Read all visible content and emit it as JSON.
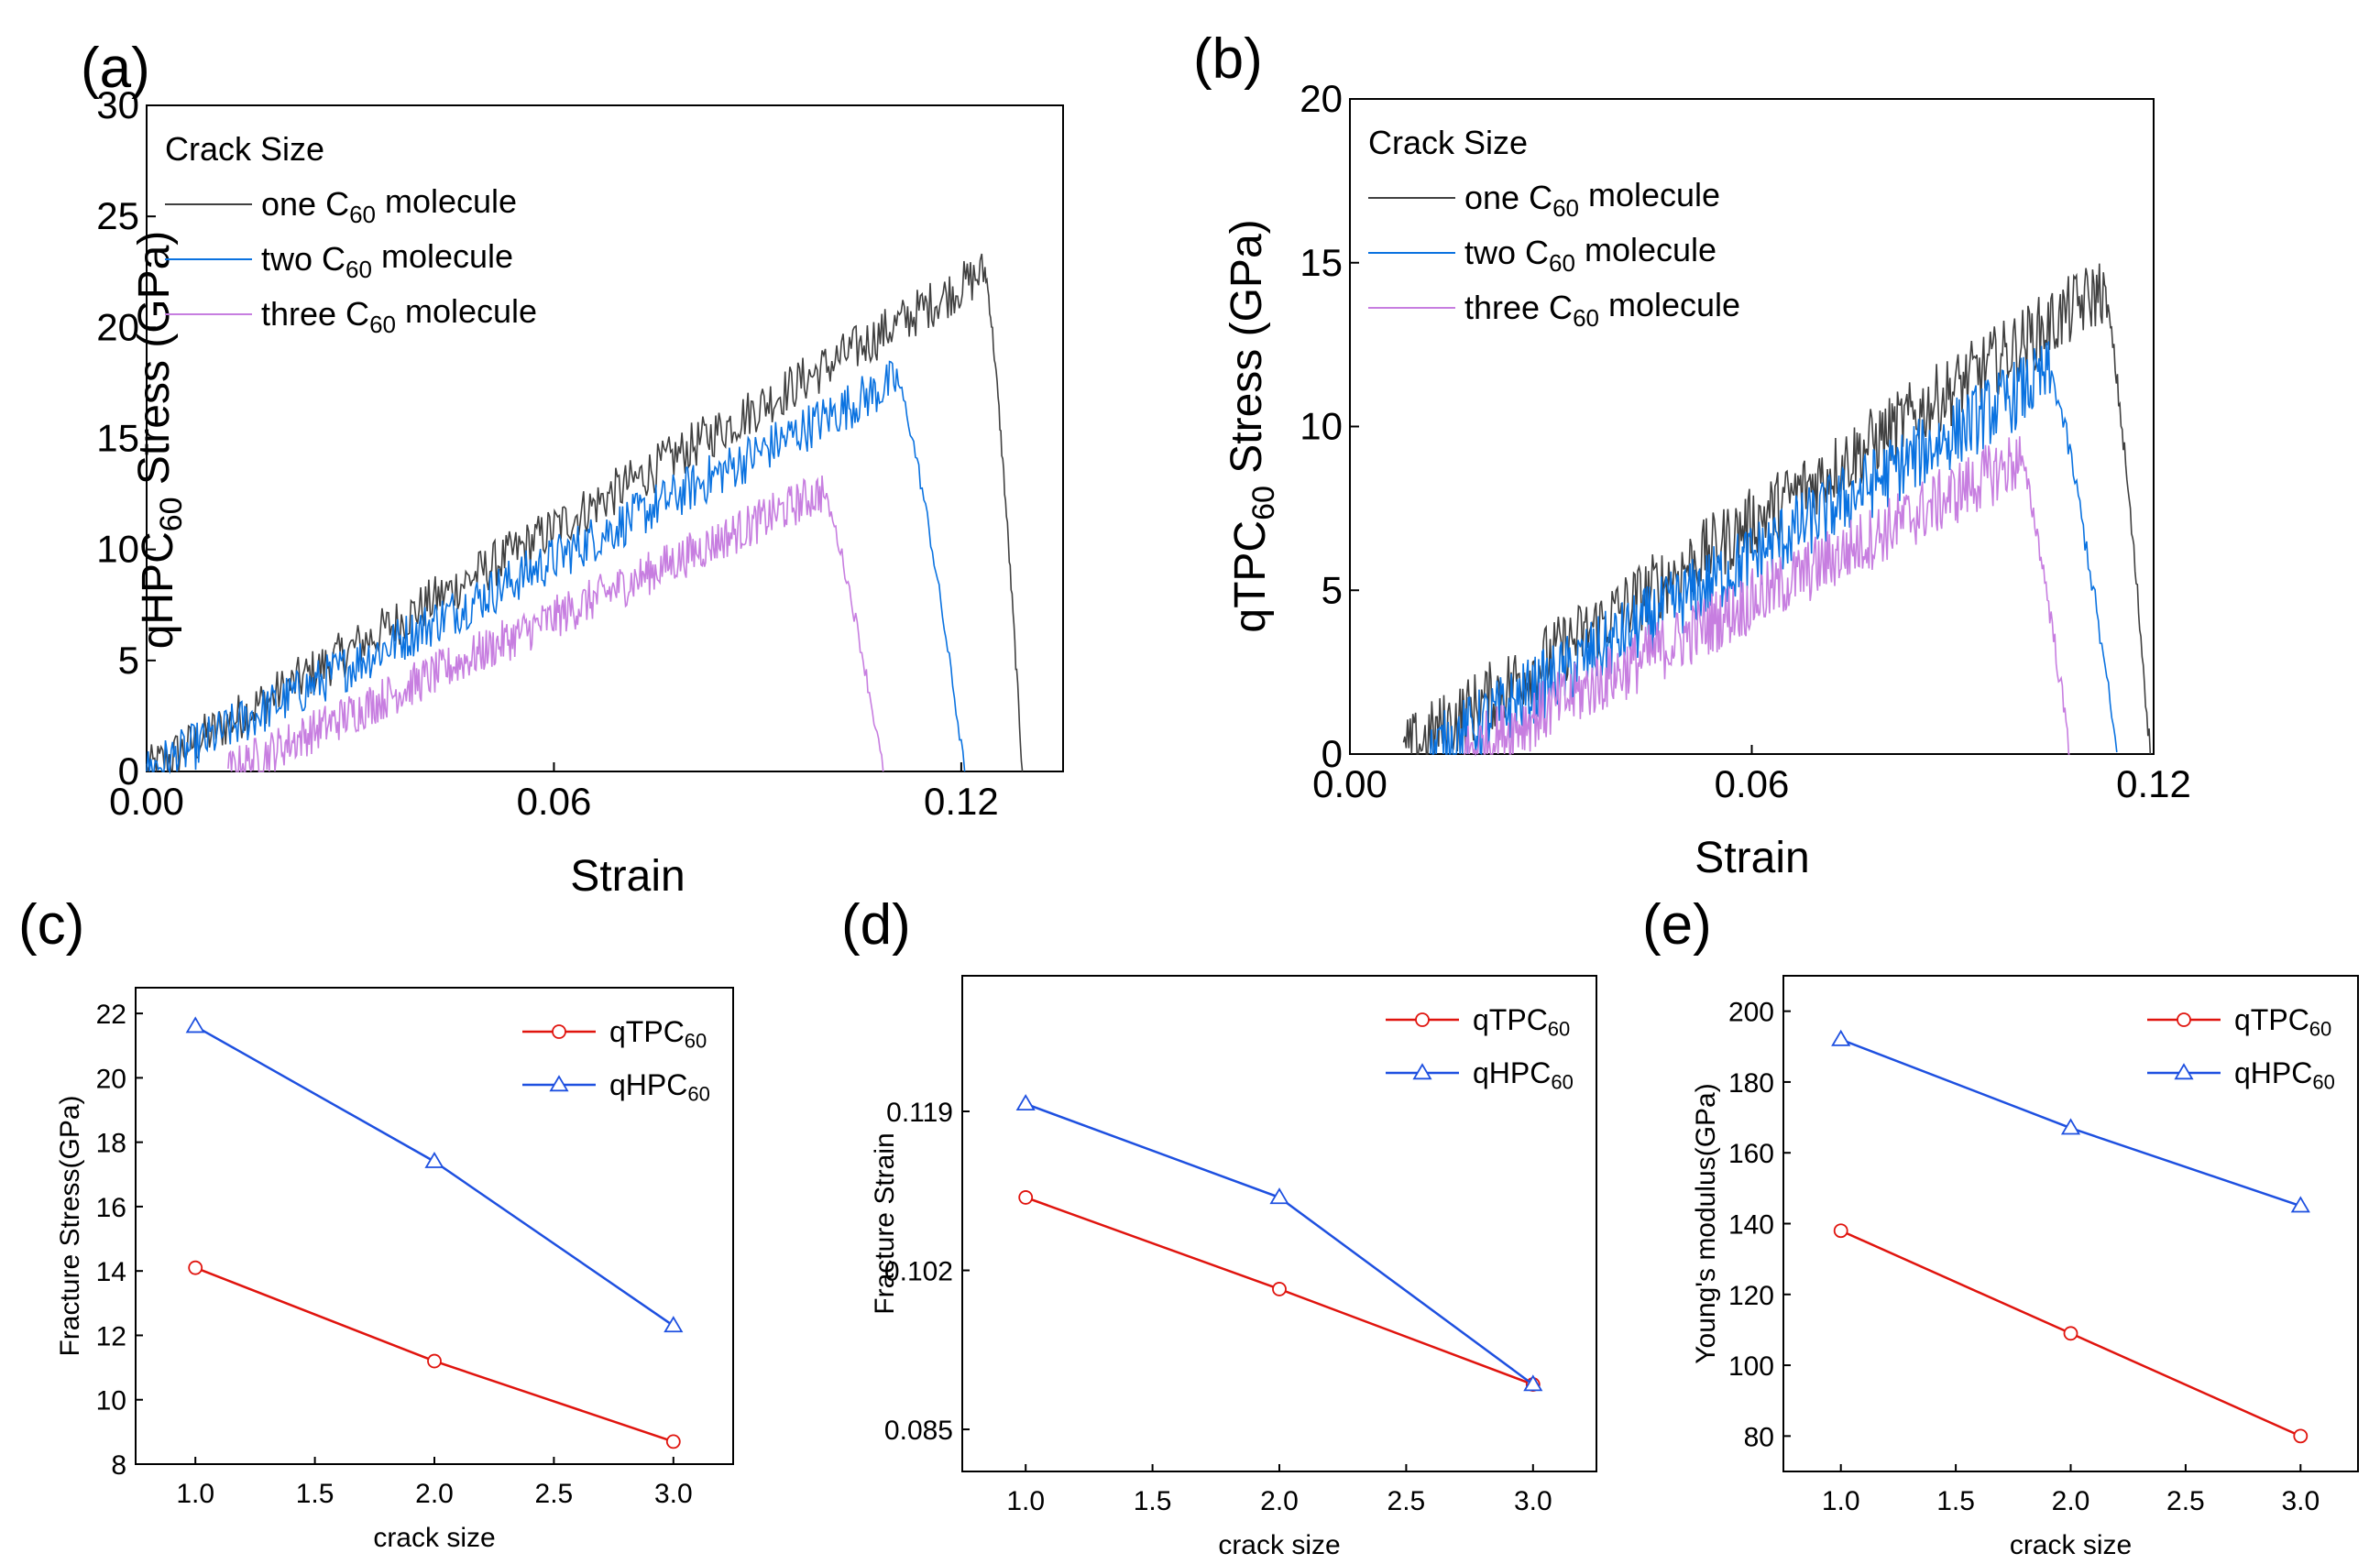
{
  "colors": {
    "one": "#404040",
    "two": "#0a72e0",
    "three": "#c77ee0",
    "qTPC60": "#e0140e",
    "qHPC60": "#1e50e0"
  },
  "chart_data": [
    {
      "panel": "(a)",
      "type": "line",
      "xlabel": "Strain",
      "ylabel_main": "qHPC",
      "ylabel_sub": "60",
      "ylabel_tail": " Stress (GPa)",
      "xlim": [
        0.0,
        0.135
      ],
      "ylim": [
        0,
        30
      ],
      "xticks": [
        "0.00",
        "0.06",
        "0.12"
      ],
      "xtick_values": [
        0.0,
        0.06,
        0.12
      ],
      "yticks": [
        "0",
        "5",
        "10",
        "15",
        "20",
        "25",
        "30"
      ],
      "ytick_values": [
        0,
        5,
        10,
        15,
        20,
        25,
        30
      ],
      "legend_title": "Crack Size",
      "series": [
        {
          "name_pre": "one C",
          "name_sub": "60",
          "name_post": " molecule",
          "key": "one",
          "onset": 0.0,
          "peak_strain": 0.1235,
          "peak_stress": 22.5,
          "fracture_strain": 0.129,
          "noise": 1.1
        },
        {
          "name_pre": "two C",
          "name_sub": "60",
          "name_post": " molecule",
          "key": "two",
          "onset": 0.0,
          "peak_strain": 0.1105,
          "peak_stress": 17.6,
          "fracture_strain": 0.1205,
          "noise": 1.1
        },
        {
          "name_pre": "three C",
          "name_sub": "60",
          "name_post": " molecule",
          "key": "three",
          "onset": 0.012,
          "peak_strain": 0.0995,
          "peak_stress": 12.6,
          "fracture_strain": 0.1085,
          "noise": 1.0
        }
      ]
    },
    {
      "panel": "(b)",
      "type": "line",
      "xlabel": "Strain",
      "ylabel_main": "qTPC",
      "ylabel_sub": "60",
      "ylabel_tail": " Stress (GPa)",
      "xlim": [
        0.0,
        0.12
      ],
      "ylim": [
        0,
        20
      ],
      "xticks": [
        "0.00",
        "0.06",
        "0.12"
      ],
      "xtick_values": [
        0.0,
        0.06,
        0.12
      ],
      "yticks": [
        "0",
        "5",
        "10",
        "15",
        "20"
      ],
      "ytick_values": [
        0,
        5,
        10,
        15,
        20
      ],
      "legend_title": "Crack Size",
      "series": [
        {
          "name_pre": "one C",
          "name_sub": "60",
          "name_post": " molecule",
          "key": "one",
          "onset": 0.008,
          "peak_strain": 0.1125,
          "peak_stress": 14.2,
          "fracture_strain": 0.1195,
          "noise": 1.1
        },
        {
          "name_pre": "two C",
          "name_sub": "60",
          "name_post": " molecule",
          "key": "two",
          "onset": 0.012,
          "peak_strain": 0.1045,
          "peak_stress": 11.6,
          "fracture_strain": 0.1145,
          "noise": 1.1
        },
        {
          "name_pre": "three C",
          "name_sub": "60",
          "name_post": " molecule",
          "key": "three",
          "onset": 0.017,
          "peak_strain": 0.1,
          "peak_stress": 9.0,
          "fracture_strain": 0.1075,
          "noise": 1.0
        }
      ]
    },
    {
      "panel": "(c)",
      "type": "line",
      "xlabel": "crack size",
      "ylabel": "Fracture Stress(GPa)",
      "xlim": [
        0.75,
        3.25
      ],
      "ylim": [
        8,
        22.8
      ],
      "xticks": [
        "1.0",
        "1.5",
        "2.0",
        "2.5",
        "3.0"
      ],
      "xtick_values": [
        1.0,
        1.5,
        2.0,
        2.5,
        3.0
      ],
      "yticks": [
        "8",
        "10",
        "12",
        "14",
        "16",
        "18",
        "20",
        "22"
      ],
      "ytick_values": [
        8,
        10,
        12,
        14,
        16,
        18,
        20,
        22
      ],
      "x": [
        1.0,
        2.0,
        3.0
      ],
      "series": [
        {
          "name": "qTPC",
          "sub": "60",
          "key": "qTPC60",
          "marker": "circle",
          "values": [
            14.1,
            11.2,
            8.7
          ]
        },
        {
          "name": "qHPC",
          "sub": "60",
          "key": "qHPC60",
          "marker": "triangle",
          "values": [
            21.6,
            17.4,
            12.3
          ]
        }
      ]
    },
    {
      "panel": "(d)",
      "type": "line",
      "xlabel": "crack size",
      "ylabel": "Fracture Strain",
      "xlim": [
        0.75,
        3.25
      ],
      "ylim": [
        0.0805,
        0.1335
      ],
      "xticks": [
        "1.0",
        "1.5",
        "2.0",
        "2.5",
        "3.0"
      ],
      "xtick_values": [
        1.0,
        1.5,
        2.0,
        2.5,
        3.0
      ],
      "yticks": [
        "0.085",
        "0.102",
        "0.119"
      ],
      "ytick_values": [
        0.085,
        0.102,
        0.119
      ],
      "x": [
        1.0,
        2.0,
        3.0
      ],
      "series": [
        {
          "name": "qTPC",
          "sub": "60",
          "key": "qTPC60",
          "marker": "circle",
          "values": [
            0.1098,
            0.1,
            0.0898
          ]
        },
        {
          "name": "qHPC",
          "sub": "60",
          "key": "qHPC60",
          "marker": "triangle",
          "values": [
            0.1198,
            0.1098,
            0.0898
          ]
        }
      ]
    },
    {
      "panel": "(e)",
      "type": "line",
      "xlabel": "crack size",
      "ylabel": "Young's modulus(GPa)",
      "xlim": [
        0.75,
        3.25
      ],
      "ylim": [
        70,
        210
      ],
      "xticks": [
        "1.0",
        "1.5",
        "2.0",
        "2.5",
        "3.0"
      ],
      "xtick_values": [
        1.0,
        1.5,
        2.0,
        2.5,
        3.0
      ],
      "yticks": [
        "80",
        "100",
        "120",
        "140",
        "160",
        "180",
        "200"
      ],
      "ytick_values": [
        80,
        100,
        120,
        140,
        160,
        180,
        200
      ],
      "x": [
        1.0,
        2.0,
        3.0
      ],
      "series": [
        {
          "name": "qTPC",
          "sub": "60",
          "key": "qTPC60",
          "marker": "circle",
          "values": [
            138,
            109,
            80
          ]
        },
        {
          "name": "qHPC",
          "sub": "60",
          "key": "qHPC60",
          "marker": "triangle",
          "values": [
            192,
            167,
            145
          ]
        }
      ]
    }
  ]
}
